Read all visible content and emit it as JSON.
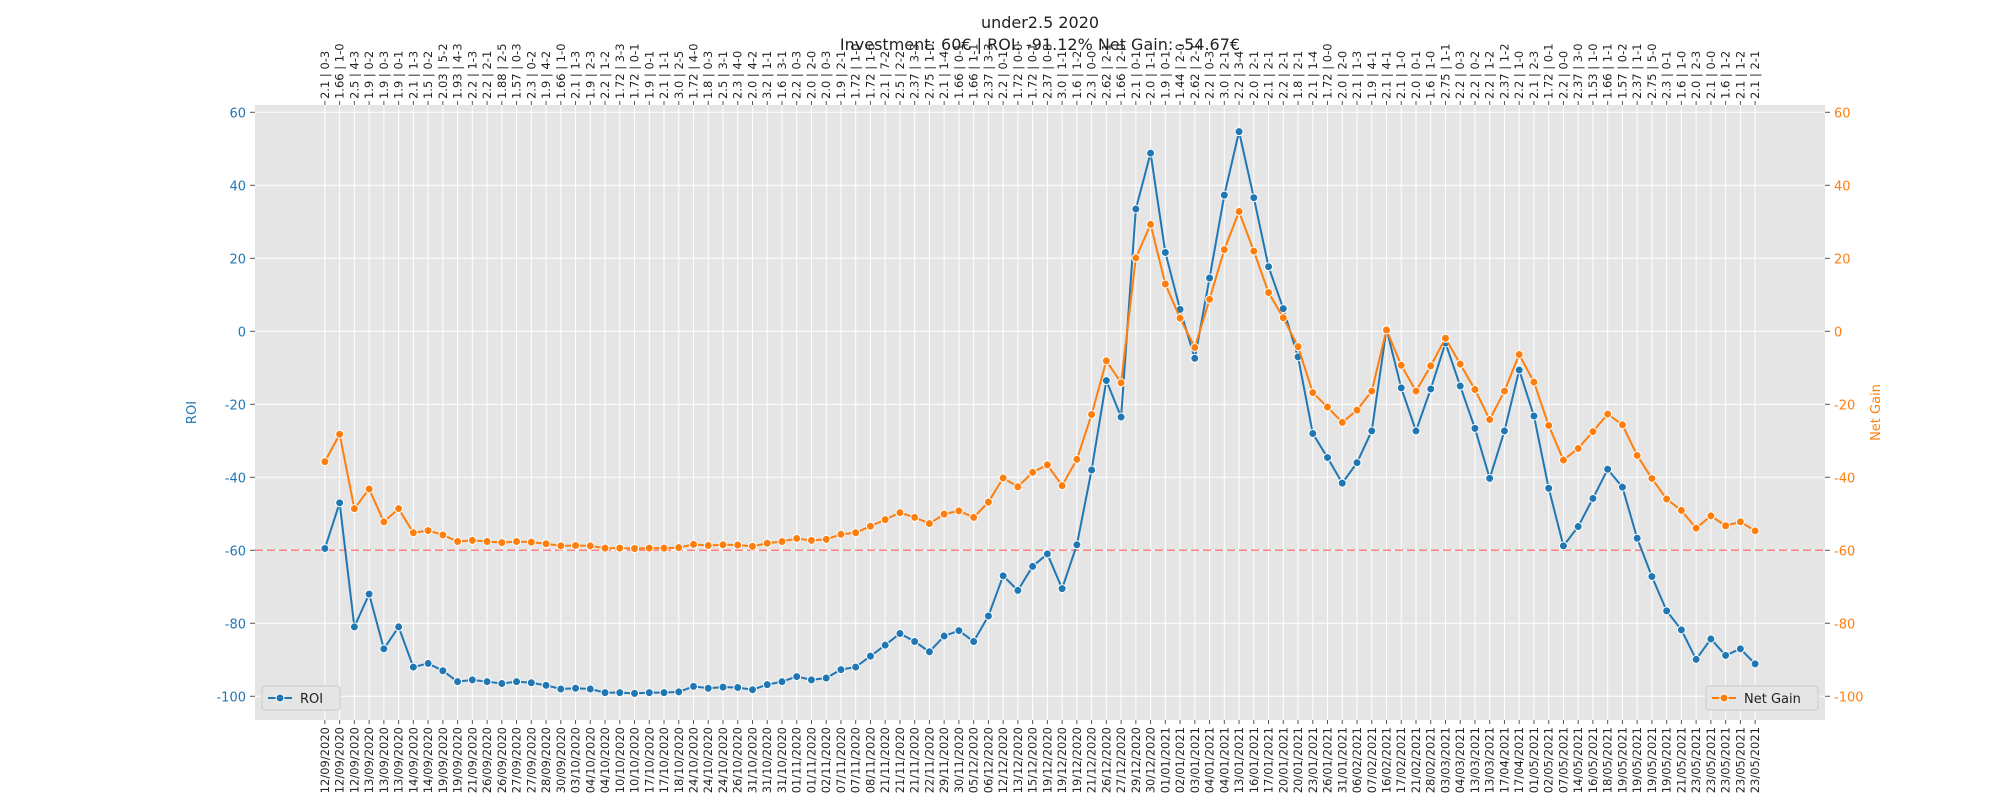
{
  "chart_data": {
    "type": "line",
    "title": "under2.5 2020",
    "subtitle": "Investment: 60€ | ROI: -91.12% Net Gain: -54.67€",
    "ylabel": "ROI",
    "y2label": "Net Gain",
    "categories": [
      "12/09/2020",
      "12/09/2020",
      "12/09/2020",
      "13/09/2020",
      "13/09/2020",
      "13/09/2020",
      "14/09/2020",
      "14/09/2020",
      "19/09/2020",
      "19/09/2020",
      "21/09/2020",
      "26/09/2020",
      "26/09/2020",
      "27/09/2020",
      "27/09/2020",
      "28/09/2020",
      "30/09/2020",
      "03/10/2020",
      "04/10/2020",
      "04/10/2020",
      "10/10/2020",
      "10/10/2020",
      "17/10/2020",
      "17/10/2020",
      "18/10/2020",
      "24/10/2020",
      "24/10/2020",
      "24/10/2020",
      "26/10/2020",
      "31/10/2020",
      "31/10/2020",
      "31/10/2020",
      "01/11/2020",
      "01/11/2020",
      "02/11/2020",
      "07/11/2020",
      "07/11/2020",
      "08/11/2020",
      "21/11/2020",
      "21/11/2020",
      "21/11/2020",
      "22/11/2020",
      "29/11/2020",
      "30/11/2020",
      "05/12/2020",
      "06/12/2020",
      "12/12/2020",
      "13/12/2020",
      "15/12/2020",
      "19/12/2020",
      "19/12/2020",
      "19/12/2020",
      "21/12/2020",
      "26/12/2020",
      "27/12/2020",
      "29/12/2020",
      "30/12/2020",
      "01/01/2021",
      "02/01/2021",
      "03/01/2021",
      "04/01/2021",
      "04/01/2021",
      "13/01/2021",
      "16/01/2021",
      "17/01/2021",
      "20/01/2021",
      "20/01/2021",
      "23/01/2021",
      "26/01/2021",
      "31/01/2021",
      "06/02/2021",
      "07/02/2021",
      "16/02/2021",
      "17/02/2021",
      "21/02/2021",
      "28/02/2021",
      "03/03/2021",
      "04/03/2021",
      "13/03/2021",
      "13/03/2021",
      "17/04/2021",
      "17/04/2021",
      "01/05/2021",
      "02/05/2021",
      "07/05/2021",
      "14/05/2021",
      "16/05/2021",
      "18/05/2021",
      "19/05/2021",
      "19/05/2021",
      "19/05/2021",
      "19/05/2021",
      "21/05/2021",
      "23/05/2021",
      "23/05/2021",
      "23/05/2021",
      "23/05/2021",
      "23/05/2021"
    ],
    "top_labels": [
      "2.1 | 0-3",
      "1.66 | 1-0",
      "2.5 | 4-3",
      "1.9 | 0-2",
      "1.9 | 0-3",
      "1.9 | 0-1",
      "2.1 | 1-3",
      "1.5 | 0-2",
      "2.03 | 5-2",
      "1.93 | 4-3",
      "2.2 | 1-3",
      "2.2 | 2-1",
      "1.88 | 2-5",
      "1.57 | 0-3",
      "2.3 | 0-2",
      "1.9 | 4-2",
      "1.66 | 1-0",
      "2.1 | 1-3",
      "1.9 | 2-3",
      "2.2 | 1-2",
      "1.72 | 3-3",
      "1.72 | 0-1",
      "1.9 | 0-1",
      "2.1 | 1-1",
      "3.0 | 2-5",
      "1.72 | 4-0",
      "1.8 | 0-3",
      "2.5 | 3-1",
      "2.3 | 4-0",
      "2.0 | 4-2",
      "3.2 | 1-1",
      "1.6 | 3-1",
      "2.2 | 0-3",
      "2.0 | 2-0",
      "2.0 | 0-3",
      "1.9 | 2-1",
      "1.72 | 1-0",
      "1.72 | 1-6",
      "2.1 | 7-2",
      "2.5 | 2-2",
      "2.37 | 3-3",
      "2.75 | 1-0",
      "2.1 | 1-4",
      "1.66 | 0-1",
      "1.66 | 1-1",
      "2.37 | 3-3",
      "2.2 | 0-1",
      "1.72 | 0-0",
      "1.72 | 0-1",
      "2.37 | 0-3",
      "3.0 | 1-1",
      "1.6 | 1-2",
      "2.3 | 0-0",
      "2.62 | 2-1",
      "1.66 | 2-0",
      "2.1 | 0-1",
      "2.0 | 1-1",
      "1.9 | 0-1",
      "1.44 | 2-0",
      "2.62 | 2-1",
      "2.2 | 0-3",
      "3.0 | 2-1",
      "2.2 | 3-4",
      "2.0 | 2-1",
      "2.1 | 2-1",
      "2.2 | 2-1",
      "1.8 | 2-1",
      "2.1 | 1-4",
      "1.72 | 0-0",
      "2.0 | 2-0",
      "2.1 | 1-3",
      "1.9 | 4-1",
      "2.1 | 4-1",
      "2.1 | 1-0",
      "2.0 | 0-1",
      "1.6 | 1-0",
      "2.75 | 1-1",
      "2.2 | 0-3",
      "2.2 | 0-2",
      "2.2 | 1-2",
      "2.37 | 1-2",
      "2.2 | 1-0",
      "2.1 | 2-3",
      "1.72 | 0-1",
      "2.2 | 0-0",
      "2.37 | 3-0",
      "1.53 | 1-0",
      "1.66 | 1-1",
      "1.57 | 0-2",
      "2.37 | 1-1",
      "2.75 | 5-0",
      "2.3 | 0-1",
      "1.6 | 1-0",
      "2.0 | 2-3",
      "2.1 | 0-0",
      "1.6 | 1-2",
      "2.1 | 1-2",
      "2.1 | 2-1"
    ],
    "series": [
      {
        "name": "ROI",
        "color": "#1f77b4",
        "axis": "y",
        "legend": "lower left",
        "values": [
          -59.5,
          -47,
          -81,
          -72,
          -87,
          -81,
          -92,
          -91,
          -93,
          -96,
          -95.5,
          -96,
          -96.5,
          -96,
          -96.3,
          -97,
          -98,
          -97.8,
          -98,
          -99,
          -99,
          -99.2,
          -99,
          -99,
          -98.8,
          -97.3,
          -97.8,
          -97.5,
          -97.6,
          -98.2,
          -96.8,
          -96,
          -94.6,
          -95.5,
          -95,
          -92.7,
          -92,
          -89,
          -86,
          -82.8,
          -85,
          -87.8,
          -83.5,
          -82,
          -85,
          -78,
          -67,
          -71,
          -64.4,
          -61,
          -70.5,
          -58.5,
          -38,
          -13.5,
          -23.5,
          33.5,
          48.8,
          21.6,
          6,
          -7.4,
          14.6,
          37.3,
          54.7,
          36.6,
          17.7,
          6.2,
          -7,
          -28,
          -34.6,
          -41.6,
          -36,
          -27.3,
          0.6,
          -15.5,
          -27.3,
          -15.8,
          -3.2,
          -15,
          -26.6,
          -40.3,
          -27.3,
          -10.6,
          -23.2,
          -43,
          -58.8,
          -53.5,
          -45.8,
          -37.8,
          -42.7,
          -56.7,
          -67.2,
          -76.6,
          -81.8,
          -89.9,
          -84.3,
          -88.8,
          -87,
          -91.12
        ]
      },
      {
        "name": "Net Gain",
        "color": "#ff7f0e",
        "axis": "y2",
        "legend": "lower right",
        "values": [
          -35.7,
          -28.2,
          -48.6,
          -43.2,
          -52.2,
          -48.6,
          -55.2,
          -54.6,
          -55.8,
          -57.6,
          -57.3,
          -57.6,
          -57.9,
          -57.6,
          -57.78,
          -58.2,
          -58.8,
          -58.68,
          -58.8,
          -59.4,
          -59.4,
          -59.52,
          -59.4,
          -59.4,
          -59.28,
          -58.38,
          -58.68,
          -58.5,
          -58.56,
          -58.92,
          -58.08,
          -57.6,
          -56.76,
          -57.3,
          -57,
          -55.62,
          -55.2,
          -53.4,
          -51.6,
          -49.68,
          -51,
          -52.68,
          -50.1,
          -49.2,
          -51,
          -46.8,
          -40.2,
          -42.6,
          -38.64,
          -36.6,
          -42.3,
          -35.1,
          -22.8,
          -8.1,
          -14.1,
          20.1,
          29.28,
          12.96,
          3.6,
          -4.44,
          8.76,
          22.38,
          32.82,
          21.96,
          10.62,
          3.72,
          -4.2,
          -16.8,
          -20.76,
          -24.96,
          -21.6,
          -16.38,
          0.36,
          -9.3,
          -16.38,
          -9.48,
          -1.92,
          -9,
          -15.96,
          -24.18,
          -16.38,
          -6.36,
          -13.92,
          -25.8,
          -35.28,
          -32.1,
          -27.48,
          -22.68,
          -25.62,
          -34.02,
          -40.32,
          -45.96,
          -49.08,
          -53.94,
          -50.58,
          -53.28,
          -52.2,
          -54.67
        ]
      }
    ],
    "hline": {
      "value": -60,
      "color": "#ff8080"
    },
    "ylim": [
      -106.5,
      62
    ],
    "yticks": [
      -100,
      -80,
      -60,
      -40,
      -20,
      0,
      20,
      40,
      60
    ],
    "y2lim": [
      -106.5,
      62
    ],
    "y2ticks": [
      -100,
      -80,
      -60,
      -40,
      -20,
      0,
      20,
      40,
      60
    ],
    "grid": true
  }
}
